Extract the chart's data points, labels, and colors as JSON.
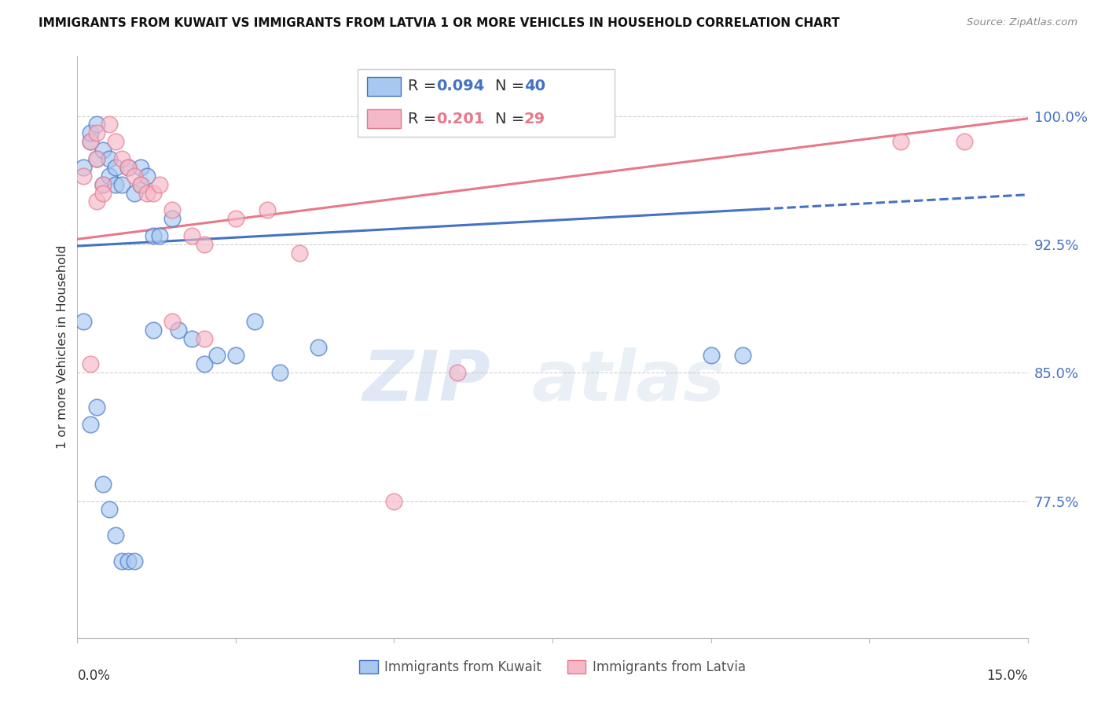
{
  "title": "IMMIGRANTS FROM KUWAIT VS IMMIGRANTS FROM LATVIA 1 OR MORE VEHICLES IN HOUSEHOLD CORRELATION CHART",
  "source": "Source: ZipAtlas.com",
  "ylabel": "1 or more Vehicles in Household",
  "ytick_labels": [
    "100.0%",
    "92.5%",
    "85.0%",
    "77.5%"
  ],
  "ytick_values": [
    1.0,
    0.925,
    0.85,
    0.775
  ],
  "xlim": [
    0.0,
    0.15
  ],
  "ylim": [
    0.695,
    1.035
  ],
  "kuwait_color": "#a8c8f0",
  "latvia_color": "#f5b8c8",
  "kuwait_line_color": "#4472c4",
  "latvia_line_color": "#e8788a",
  "kuwait_R": 0.094,
  "kuwait_N": 40,
  "latvia_R": 0.201,
  "latvia_N": 29,
  "kuwait_scatter_x": [
    0.001,
    0.002,
    0.002,
    0.003,
    0.003,
    0.004,
    0.004,
    0.005,
    0.005,
    0.006,
    0.006,
    0.007,
    0.008,
    0.009,
    0.01,
    0.01,
    0.011,
    0.012,
    0.013,
    0.015,
    0.016,
    0.018,
    0.02,
    0.022,
    0.025,
    0.028,
    0.032,
    0.038,
    0.1,
    0.105,
    0.001,
    0.002,
    0.003,
    0.004,
    0.005,
    0.006,
    0.007,
    0.008,
    0.009,
    0.012
  ],
  "kuwait_scatter_y": [
    0.97,
    0.985,
    0.99,
    0.975,
    0.995,
    0.98,
    0.96,
    0.975,
    0.965,
    0.97,
    0.96,
    0.96,
    0.97,
    0.955,
    0.96,
    0.97,
    0.965,
    0.93,
    0.93,
    0.94,
    0.875,
    0.87,
    0.855,
    0.86,
    0.86,
    0.88,
    0.85,
    0.865,
    0.86,
    0.86,
    0.88,
    0.82,
    0.83,
    0.785,
    0.77,
    0.755,
    0.74,
    0.74,
    0.74,
    0.875
  ],
  "latvia_scatter_x": [
    0.001,
    0.002,
    0.003,
    0.003,
    0.004,
    0.005,
    0.006,
    0.007,
    0.008,
    0.009,
    0.01,
    0.011,
    0.012,
    0.013,
    0.015,
    0.018,
    0.02,
    0.025,
    0.03,
    0.035,
    0.05,
    0.06,
    0.13,
    0.14,
    0.015,
    0.02,
    0.003,
    0.004,
    0.002
  ],
  "latvia_scatter_y": [
    0.965,
    0.985,
    0.975,
    0.95,
    0.96,
    0.995,
    0.985,
    0.975,
    0.97,
    0.965,
    0.96,
    0.955,
    0.955,
    0.96,
    0.945,
    0.93,
    0.925,
    0.94,
    0.945,
    0.92,
    0.775,
    0.85,
    0.985,
    0.985,
    0.88,
    0.87,
    0.99,
    0.955,
    0.855
  ],
  "watermark_zip": "ZIP",
  "watermark_atlas": "atlas",
  "background_color": "#ffffff",
  "grid_color": "#d0d0d0"
}
